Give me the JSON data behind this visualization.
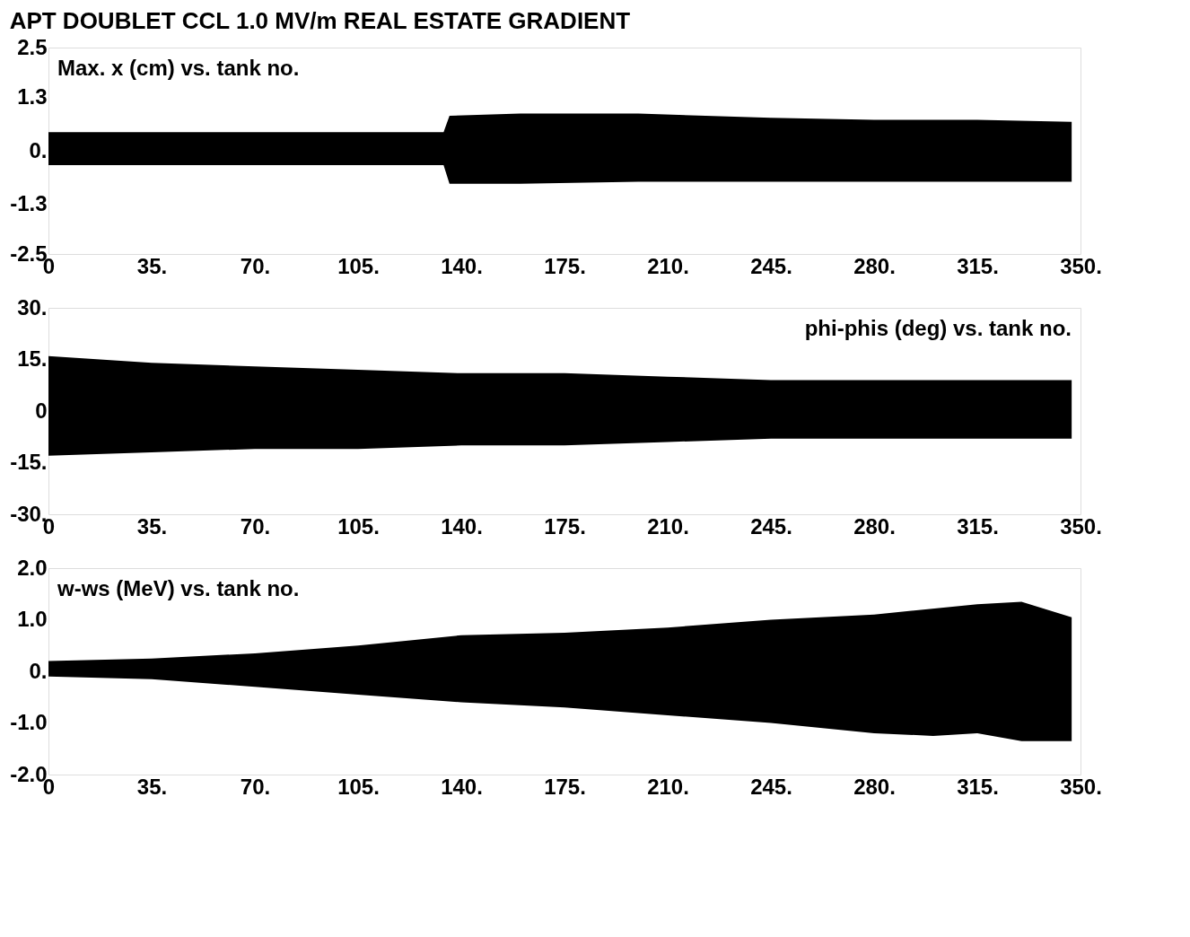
{
  "chart_data": [
    {
      "type": "area",
      "title": "APT DOUBLET CCL 1.0 MV/m REAL ESTATE GRADIENT",
      "annotations": [
        "Max. x (cm) vs. tank no."
      ],
      "xlim": [
        0,
        350
      ],
      "xticks": [
        {
          "value": 0,
          "label": "0"
        },
        {
          "value": 35,
          "label": "35."
        },
        {
          "value": 70,
          "label": "70."
        },
        {
          "value": 105,
          "label": "105."
        },
        {
          "value": 140,
          "label": "140."
        },
        {
          "value": 175,
          "label": "175."
        },
        {
          "value": 210,
          "label": "210."
        },
        {
          "value": 245,
          "label": "245."
        },
        {
          "value": 280,
          "label": "280."
        },
        {
          "value": 315,
          "label": "315."
        },
        {
          "value": 350,
          "label": "350."
        }
      ],
      "ylim": [
        -2.5,
        2.5
      ],
      "yticks": [
        -2.5,
        -1.3,
        {
          "value": 0,
          "label": "0."
        },
        1.3,
        2.5
      ],
      "grid": false,
      "series": [
        {
          "color": "#000000",
          "x": [
            0,
            35,
            70,
            105,
            134,
            136,
            160,
            200,
            245,
            280,
            315,
            347
          ],
          "values": [
            0.45,
            0.45,
            0.45,
            0.45,
            0.45,
            0.85,
            0.9,
            0.9,
            0.8,
            0.75,
            0.75,
            0.7
          ]
        },
        {
          "color": "#000000",
          "x": [
            0,
            35,
            70,
            105,
            134,
            136,
            160,
            200,
            245,
            280,
            315,
            347
          ],
          "values": [
            -0.35,
            -0.35,
            -0.35,
            -0.35,
            -0.35,
            -0.8,
            -0.8,
            -0.75,
            -0.75,
            -0.75,
            -0.75,
            -0.75
          ]
        }
      ]
    },
    {
      "type": "area",
      "annotations": [
        "phi-phis (deg) vs. tank no."
      ],
      "xlim": [
        0,
        350
      ],
      "xticks": [
        {
          "value": 0,
          "label": "0"
        },
        {
          "value": 35,
          "label": "35."
        },
        {
          "value": 70,
          "label": "70."
        },
        {
          "value": 105,
          "label": "105."
        },
        {
          "value": 140,
          "label": "140."
        },
        {
          "value": 175,
          "label": "175."
        },
        {
          "value": 210,
          "label": "210."
        },
        {
          "value": 245,
          "label": "245."
        },
        {
          "value": 280,
          "label": "280."
        },
        {
          "value": 315,
          "label": "315."
        },
        {
          "value": 350,
          "label": "350."
        }
      ],
      "ylim": [
        -30,
        30
      ],
      "yticks": [
        {
          "value": -30,
          "label": "-30."
        },
        {
          "value": -15,
          "label": "-15."
        },
        0,
        {
          "value": 15,
          "label": "15."
        },
        {
          "value": 30,
          "label": "30."
        }
      ],
      "grid": false,
      "series": [
        {
          "color": "#000000",
          "x": [
            0,
            35,
            70,
            105,
            140,
            175,
            210,
            245,
            280,
            315,
            347
          ],
          "values": [
            16,
            14,
            13,
            12,
            11,
            11,
            10,
            9,
            9,
            9,
            9
          ]
        },
        {
          "color": "#000000",
          "x": [
            0,
            35,
            70,
            105,
            140,
            175,
            210,
            245,
            280,
            315,
            347
          ],
          "values": [
            -13,
            -12,
            -11,
            -11,
            -10,
            -10,
            -9,
            -8,
            -8,
            -8,
            -8
          ]
        }
      ]
    },
    {
      "type": "area",
      "annotations": [
        "w-ws (MeV) vs. tank no."
      ],
      "xlim": [
        0,
        350
      ],
      "xticks": [
        {
          "value": 0,
          "label": "0"
        },
        {
          "value": 35,
          "label": "35."
        },
        {
          "value": 70,
          "label": "70."
        },
        {
          "value": 105,
          "label": "105."
        },
        {
          "value": 140,
          "label": "140."
        },
        {
          "value": 175,
          "label": "175."
        },
        {
          "value": 210,
          "label": "210."
        },
        {
          "value": 245,
          "label": "245."
        },
        {
          "value": 280,
          "label": "280."
        },
        {
          "value": 315,
          "label": "315."
        },
        {
          "value": 350,
          "label": "350."
        }
      ],
      "ylim": [
        -2.0,
        2.0
      ],
      "yticks": [
        {
          "value": -2,
          "label": "-2.0"
        },
        {
          "value": -1,
          "label": "-1.0"
        },
        {
          "value": 0,
          "label": "0."
        },
        {
          "value": 1,
          "label": "1.0"
        },
        {
          "value": 2,
          "label": "2.0"
        }
      ],
      "grid": false,
      "series": [
        {
          "color": "#000000",
          "x": [
            0,
            35,
            70,
            105,
            140,
            175,
            210,
            245,
            280,
            315,
            330,
            347
          ],
          "values": [
            0.2,
            0.25,
            0.35,
            0.5,
            0.7,
            0.75,
            0.85,
            1.0,
            1.1,
            1.3,
            1.35,
            1.05
          ]
        },
        {
          "color": "#000000",
          "x": [
            0,
            35,
            70,
            105,
            140,
            175,
            210,
            245,
            280,
            300,
            315,
            330,
            347
          ],
          "values": [
            -0.1,
            -0.15,
            -0.3,
            -0.45,
            -0.6,
            -0.7,
            -0.85,
            -1.0,
            -1.2,
            -1.25,
            -1.2,
            -1.35,
            -1.35
          ]
        }
      ]
    }
  ]
}
